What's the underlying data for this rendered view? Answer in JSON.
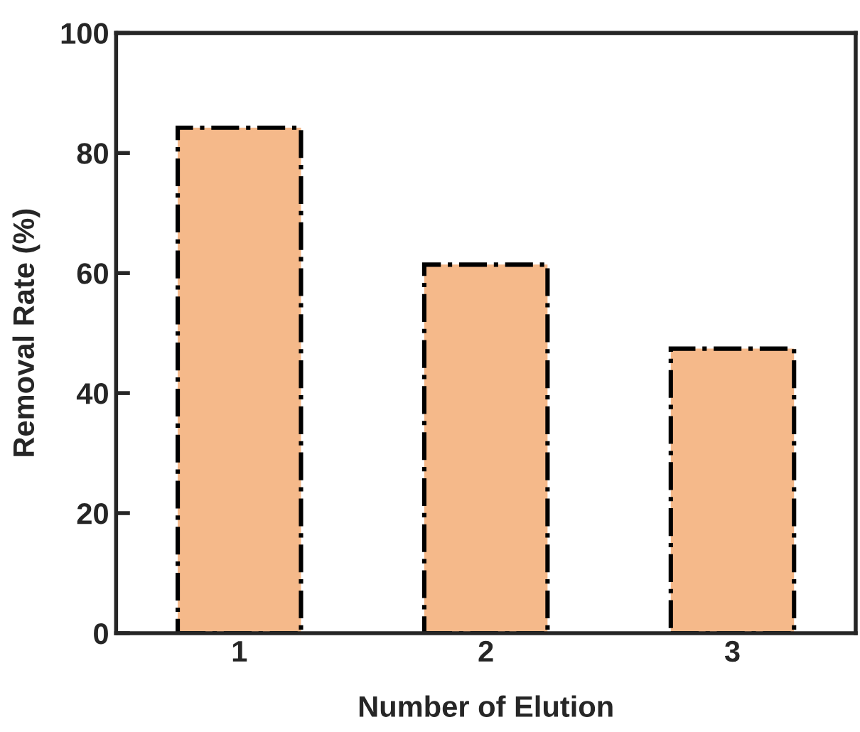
{
  "chart_data": {
    "type": "bar",
    "xlabel": "Number of Elution",
    "ylabel": "Removal Rate (%)",
    "categories": [
      "1",
      "2",
      "3"
    ],
    "values": [
      84.2,
      61.4,
      47.4
    ],
    "color": "#f5b98a",
    "line_style": "dashdot",
    "ylim": [
      0,
      100
    ],
    "yticks": [
      0,
      20,
      40,
      60,
      80,
      100
    ],
    "grid": false,
    "legend": false
  }
}
